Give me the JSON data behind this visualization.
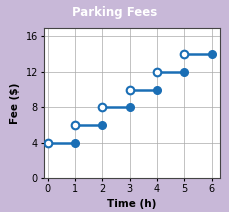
{
  "title": "Parking Fees",
  "title_bg_color": "#7248a0",
  "title_text_color": "#ffffff",
  "xlabel": "Time (h)",
  "ylabel": "Fee ($)",
  "xlim": [
    -0.15,
    6.3
  ],
  "ylim": [
    0,
    17
  ],
  "xticks": [
    0,
    1,
    2,
    3,
    4,
    5,
    6
  ],
  "yticks": [
    0,
    4,
    8,
    12,
    16
  ],
  "steps": [
    {
      "x_start": 0,
      "x_end": 1,
      "y": 4
    },
    {
      "x_start": 1,
      "x_end": 2,
      "y": 6
    },
    {
      "x_start": 2,
      "x_end": 3,
      "y": 8
    },
    {
      "x_start": 3,
      "x_end": 4,
      "y": 10
    },
    {
      "x_start": 4,
      "x_end": 5,
      "y": 12
    },
    {
      "x_start": 5,
      "x_end": 6,
      "y": 14
    }
  ],
  "line_color": "#1a6eb5",
  "closed_dot_color": "#1a6eb5",
  "open_dot_color": "#ffffff",
  "open_dot_edge_color": "#1a6eb5",
  "dot_size": 5.5,
  "dot_linewidth": 1.5,
  "grid_color": "#aaaaaa",
  "bg_color": "#ffffff",
  "outer_bg": "#c8b8d8",
  "figsize": [
    2.29,
    2.12
  ],
  "dpi": 100
}
